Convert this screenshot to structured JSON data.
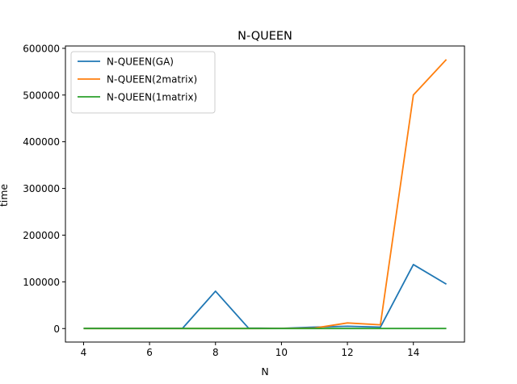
{
  "chart_data": {
    "type": "line",
    "title": "N-QUEEN",
    "xlabel": "N",
    "ylabel": "time",
    "xlim": [
      3.45,
      15.55
    ],
    "ylim": [
      -28900,
      605000
    ],
    "xticks": [
      4,
      6,
      8,
      10,
      12,
      14
    ],
    "yticks": [
      0,
      100000,
      200000,
      300000,
      400000,
      500000,
      600000
    ],
    "x": [
      4,
      5,
      6,
      7,
      8,
      9,
      10,
      11,
      12,
      13,
      14,
      15
    ],
    "grid": false,
    "legend_position": "top-left",
    "series": [
      {
        "name": "N-QUEEN(GA)",
        "color": "#1f77b4",
        "values": [
          500,
          500,
          500,
          500,
          80000,
          1000,
          500,
          3000,
          5000,
          3000,
          137000,
          95000
        ]
      },
      {
        "name": "N-QUEEN(2matrix)",
        "color": "#ff7f0e",
        "values": [
          100,
          100,
          100,
          100,
          100,
          100,
          200,
          1000,
          12000,
          8000,
          500000,
          576000
        ]
      },
      {
        "name": "N-QUEEN(1matrix)",
        "color": "#2ca02c",
        "values": [
          100,
          100,
          100,
          100,
          100,
          100,
          100,
          100,
          100,
          100,
          100,
          100
        ]
      }
    ]
  }
}
